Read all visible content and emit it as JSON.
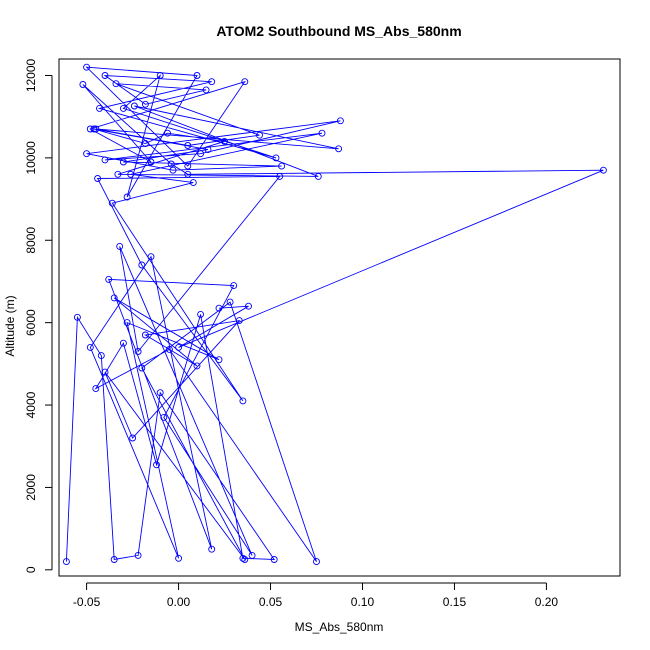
{
  "chart_data": {
    "type": "scatter",
    "title": "ATOM2 Southbound MS_Abs_580nm",
    "xlabel": "MS_Abs_580nm",
    "ylabel": "Altitude (m)",
    "xlim": [
      -0.065,
      0.24
    ],
    "ylim": [
      -150,
      12400
    ],
    "x_ticks": [
      -0.05,
      0.0,
      0.05,
      0.1,
      0.15,
      0.2
    ],
    "x_tick_labels": [
      "-0.05",
      "0.00",
      "0.05",
      "0.10",
      "0.15",
      "0.20"
    ],
    "y_ticks": [
      0,
      2000,
      4000,
      6000,
      8000,
      10000,
      12000
    ],
    "y_tick_labels": [
      "0",
      "2000",
      "4000",
      "6000",
      "8000",
      "10000",
      "12000"
    ],
    "grid": false,
    "line_color": "#0000ff",
    "series": [
      {
        "connected": true,
        "x": [
          -0.061,
          -0.055,
          -0.042,
          -0.035,
          -0.022,
          -0.01,
          0.052,
          0.035,
          0.012,
          -0.012,
          -0.03,
          -0.045,
          -0.005,
          0.075,
          0.028,
          -0.02,
          0.036,
          -0.04,
          -0.025,
          0.033,
          -0.018,
          0.01,
          -0.035,
          0.022,
          -0.028,
          0.0,
          -0.048,
          -0.015,
          0.018,
          -0.038,
          0.03,
          -0.008,
          0.04,
          -0.032,
          -0.022,
          0.055,
          -0.044,
          -0.02,
          0.035,
          -0.036,
          0.008,
          -0.026,
          0.078,
          -0.04,
          0.012,
          0.088,
          -0.05,
          -0.003,
          0.056,
          -0.03,
          0.016,
          -0.046,
          -0.018,
          -0.006,
          0.025,
          -0.033,
          0.076,
          -0.024,
          0.087,
          -0.045,
          0.005,
          0.044,
          -0.034,
          0.015,
          -0.018,
          -0.04,
          0.018,
          -0.043,
          0.053,
          -0.03,
          -0.01,
          -0.028,
          0.01,
          -0.05,
          0.005,
          0.036,
          -0.048,
          -0.015,
          -0.052,
          -0.004,
          0.005,
          0.231,
          0.0,
          0.038,
          0.022
        ],
        "y": [
          200,
          6130,
          5200,
          250,
          350,
          4300,
          250,
          280,
          6200,
          2550,
          5500,
          4400,
          5350,
          200,
          6500,
          4900,
          250,
          4800,
          3200,
          6050,
          5700,
          4950,
          6600,
          5100,
          6000,
          280,
          5400,
          7600,
          500,
          7050,
          6900,
          3700,
          350,
          7850,
          5300,
          9550,
          9500,
          7400,
          4100,
          8900,
          9400,
          9600,
          10600,
          9950,
          10100,
          10900,
          10100,
          9700,
          9800,
          9900,
          10200,
          10700,
          10350,
          10600,
          10400,
          9600,
          9550,
          11260,
          10220,
          10700,
          10300,
          10550,
          11800,
          11650,
          11300,
          12000,
          11850,
          11200,
          10000,
          11200,
          12000,
          9050,
          12000,
          12200,
          9800,
          11850,
          10700,
          9900,
          11780,
          9850,
          9600,
          9700,
          5400,
          6400,
          6350
        ]
      }
    ]
  }
}
